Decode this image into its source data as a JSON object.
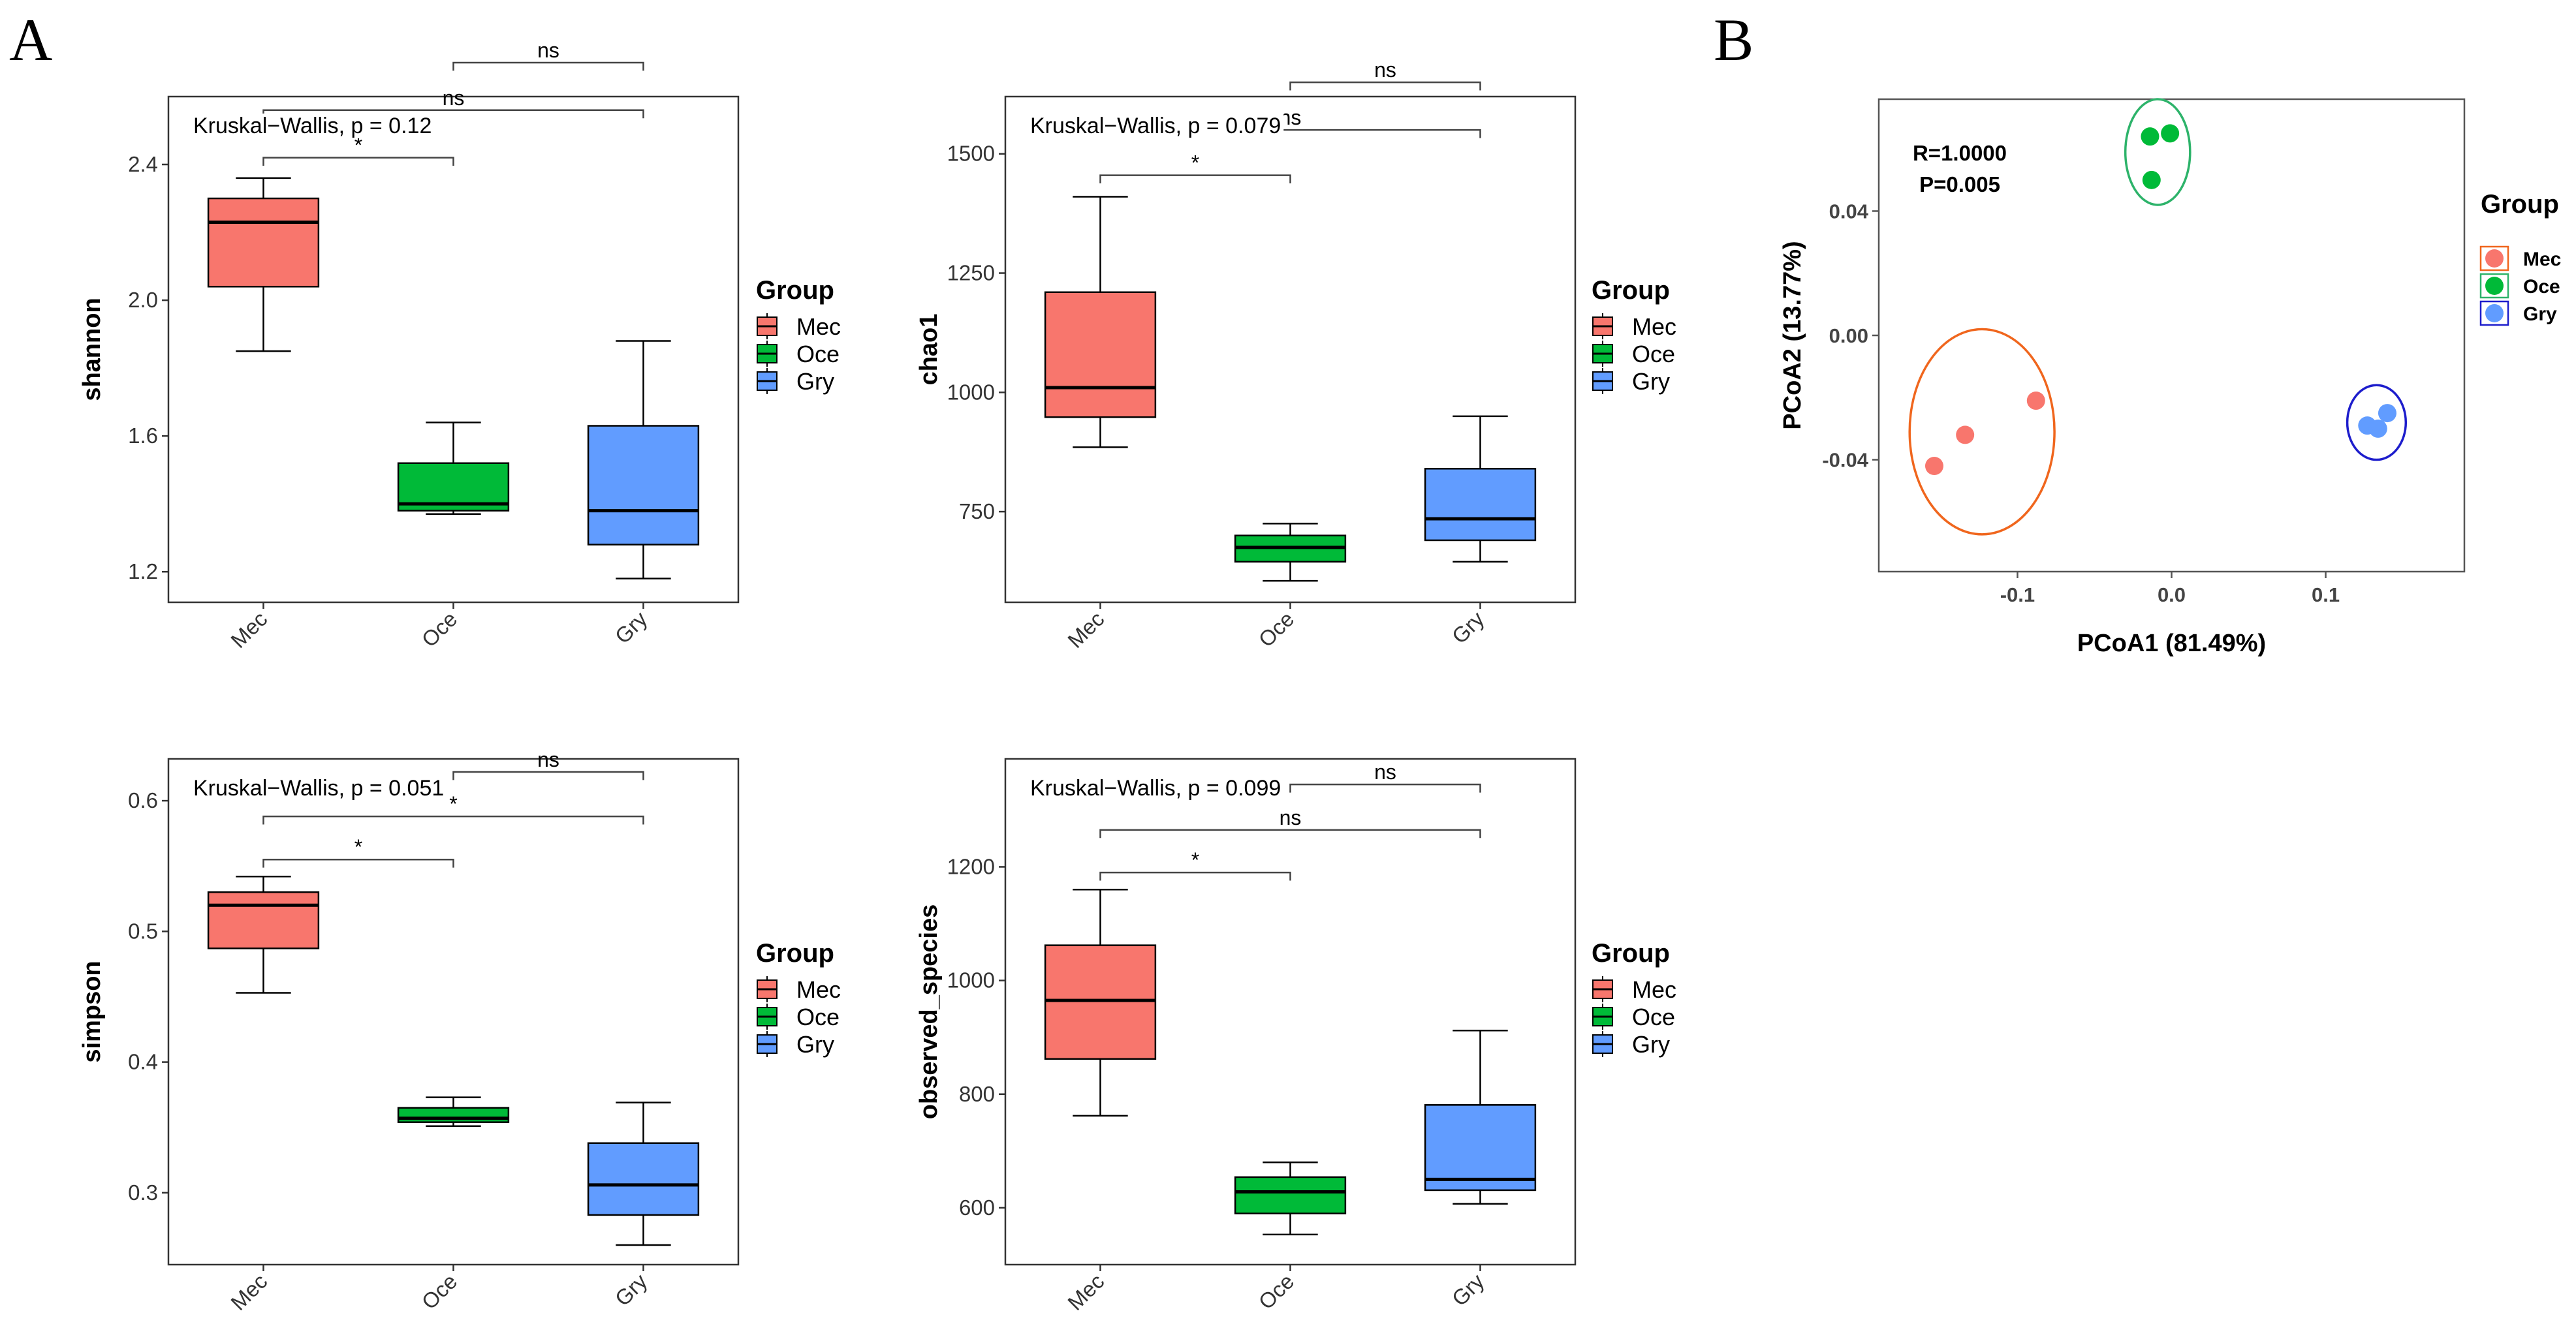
{
  "panels": {
    "A": "A",
    "B": "B"
  },
  "colors": {
    "Mec": "#F8766D",
    "Oce": "#00BA38",
    "Gry": "#619CFF"
  },
  "chart_data": [
    {
      "type": "boxplot",
      "id": "shannon",
      "ylabel": "shannon",
      "categories": [
        "Mec",
        "Oce",
        "Gry"
      ],
      "ylim": [
        1.11,
        2.6
      ],
      "yticks": [
        1.2,
        1.6,
        2.0,
        2.4
      ],
      "ytick_labels": [
        "1.2",
        "1.6",
        "2.0",
        "2.4"
      ],
      "boxes": [
        {
          "group": "Mec",
          "min": 1.85,
          "q1": 2.04,
          "median": 2.23,
          "q3": 2.3,
          "max": 2.36
        },
        {
          "group": "Oce",
          "min": 1.37,
          "q1": 1.38,
          "median": 1.4,
          "q3": 1.52,
          "max": 1.64
        },
        {
          "group": "Gry",
          "min": 1.18,
          "q1": 1.28,
          "median": 1.38,
          "q3": 1.63,
          "max": 1.88
        }
      ],
      "kruskal": "Kruskal−Wallis, p = 0.12",
      "comparisons": [
        {
          "groups": [
            "Mec",
            "Oce"
          ],
          "label": "*",
          "y": 2.42
        },
        {
          "groups": [
            "Mec",
            "Gry"
          ],
          "label": "ns",
          "y": 2.56
        },
        {
          "groups": [
            "Oce",
            "Gry"
          ],
          "label": "ns",
          "y": 2.7
        }
      ],
      "legend": {
        "title": "Group",
        "entries": [
          "Mec",
          "Oce",
          "Gry"
        ]
      }
    },
    {
      "type": "boxplot",
      "id": "chao1",
      "ylabel": "chao1",
      "categories": [
        "Mec",
        "Oce",
        "Gry"
      ],
      "ylim": [
        560,
        1620
      ],
      "yticks": [
        750,
        1000,
        1250,
        1500
      ],
      "ytick_labels": [
        "750",
        "1000",
        "1250",
        "1500"
      ],
      "boxes": [
        {
          "group": "Mec",
          "min": 885,
          "q1": 948,
          "median": 1010,
          "q3": 1210,
          "max": 1410
        },
        {
          "group": "Oce",
          "min": 605,
          "q1": 645,
          "median": 675,
          "q3": 700,
          "max": 725
        },
        {
          "group": "Gry",
          "min": 645,
          "q1": 690,
          "median": 735,
          "q3": 840,
          "max": 950
        }
      ],
      "kruskal": "Kruskal−Wallis, p = 0.079",
      "comparisons": [
        {
          "groups": [
            "Mec",
            "Oce"
          ],
          "label": "*",
          "y": 1455
        },
        {
          "groups": [
            "Mec",
            "Gry"
          ],
          "label": "ns",
          "y": 1550
        },
        {
          "groups": [
            "Oce",
            "Gry"
          ],
          "label": "ns",
          "y": 1650
        }
      ],
      "legend": {
        "title": "Group",
        "entries": [
          "Mec",
          "Oce",
          "Gry"
        ]
      }
    },
    {
      "type": "boxplot",
      "id": "simpson",
      "ylabel": "simpson",
      "categories": [
        "Mec",
        "Oce",
        "Gry"
      ],
      "ylim": [
        0.245,
        0.632
      ],
      "yticks": [
        0.3,
        0.4,
        0.5,
        0.6
      ],
      "ytick_labels": [
        "0.3",
        "0.4",
        "0.5",
        "0.6"
      ],
      "boxes": [
        {
          "group": "Mec",
          "min": 0.453,
          "q1": 0.487,
          "median": 0.52,
          "q3": 0.53,
          "max": 0.542
        },
        {
          "group": "Oce",
          "min": 0.351,
          "q1": 0.354,
          "median": 0.357,
          "q3": 0.365,
          "max": 0.373
        },
        {
          "group": "Gry",
          "min": 0.26,
          "q1": 0.283,
          "median": 0.306,
          "q3": 0.338,
          "max": 0.369
        }
      ],
      "kruskal": "Kruskal−Wallis, p = 0.051",
      "comparisons": [
        {
          "groups": [
            "Mec",
            "Oce"
          ],
          "label": "*",
          "y": 0.555
        },
        {
          "groups": [
            "Mec",
            "Gry"
          ],
          "label": "*",
          "y": 0.588
        },
        {
          "groups": [
            "Oce",
            "Gry"
          ],
          "label": "ns",
          "y": 0.622
        }
      ],
      "legend": {
        "title": "Group",
        "entries": [
          "Mec",
          "Oce",
          "Gry"
        ]
      }
    },
    {
      "type": "boxplot",
      "id": "observed_species",
      "ylabel": "observed_species",
      "categories": [
        "Mec",
        "Oce",
        "Gry"
      ],
      "ylim": [
        500,
        1390
      ],
      "yticks": [
        600,
        800,
        1000,
        1200
      ],
      "ytick_labels": [
        "600",
        "800",
        "1000",
        "1200"
      ],
      "boxes": [
        {
          "group": "Mec",
          "min": 762,
          "q1": 862,
          "median": 965,
          "q3": 1062,
          "max": 1160
        },
        {
          "group": "Oce",
          "min": 553,
          "q1": 590,
          "median": 628,
          "q3": 654,
          "max": 680
        },
        {
          "group": "Gry",
          "min": 607,
          "q1": 631,
          "median": 650,
          "q3": 781,
          "max": 912
        }
      ],
      "kruskal": "Kruskal−Wallis, p = 0.099",
      "comparisons": [
        {
          "groups": [
            "Mec",
            "Oce"
          ],
          "label": "*",
          "y": 1190
        },
        {
          "groups": [
            "Mec",
            "Gry"
          ],
          "label": "ns",
          "y": 1265
        },
        {
          "groups": [
            "Oce",
            "Gry"
          ],
          "label": "ns",
          "y": 1345
        }
      ],
      "legend": {
        "title": "Group",
        "entries": [
          "Mec",
          "Oce",
          "Gry"
        ]
      }
    },
    {
      "type": "scatter",
      "id": "pcoa",
      "xlabel": "PCoA1 (81.49%)",
      "ylabel": "PCoA2 (13.77%)",
      "xlim": [
        -0.19,
        0.19
      ],
      "ylim": [
        -0.076,
        0.076
      ],
      "xticks": [
        -0.1,
        0.0,
        0.1
      ],
      "xtick_labels": [
        "-0.1",
        "0.0",
        "0.1"
      ],
      "yticks": [
        -0.04,
        0.0,
        0.04
      ],
      "ytick_labels": [
        "-0.04",
        "0.00",
        "0.04"
      ],
      "annotations": [
        "R=1.0000",
        "P=0.005"
      ],
      "series": [
        {
          "name": "Mec",
          "points": [
            [
              -0.154,
              -0.042
            ],
            [
              -0.134,
              -0.032
            ],
            [
              -0.088,
              -0.021
            ]
          ],
          "ellipse": {
            "cx": -0.123,
            "cy": -0.031,
            "rx": 0.047,
            "ry": 0.033,
            "color": "#F0661D"
          }
        },
        {
          "name": "Oce",
          "points": [
            [
              -0.014,
              0.064
            ],
            [
              -0.001,
              0.065
            ],
            [
              -0.013,
              0.05
            ]
          ],
          "ellipse": {
            "cx": -0.009,
            "cy": 0.059,
            "rx": 0.021,
            "ry": 0.017,
            "color": "#2DB36A"
          }
        },
        {
          "name": "Gry",
          "points": [
            [
              0.127,
              -0.029
            ],
            [
              0.134,
              -0.03
            ],
            [
              0.14,
              -0.025
            ]
          ],
          "ellipse": {
            "cx": 0.133,
            "cy": -0.028,
            "rx": 0.019,
            "ry": 0.012,
            "color": "#1D1DCC"
          }
        }
      ],
      "legend": {
        "title": "Group",
        "entries": [
          "Mec",
          "Oce",
          "Gry"
        ]
      }
    }
  ]
}
